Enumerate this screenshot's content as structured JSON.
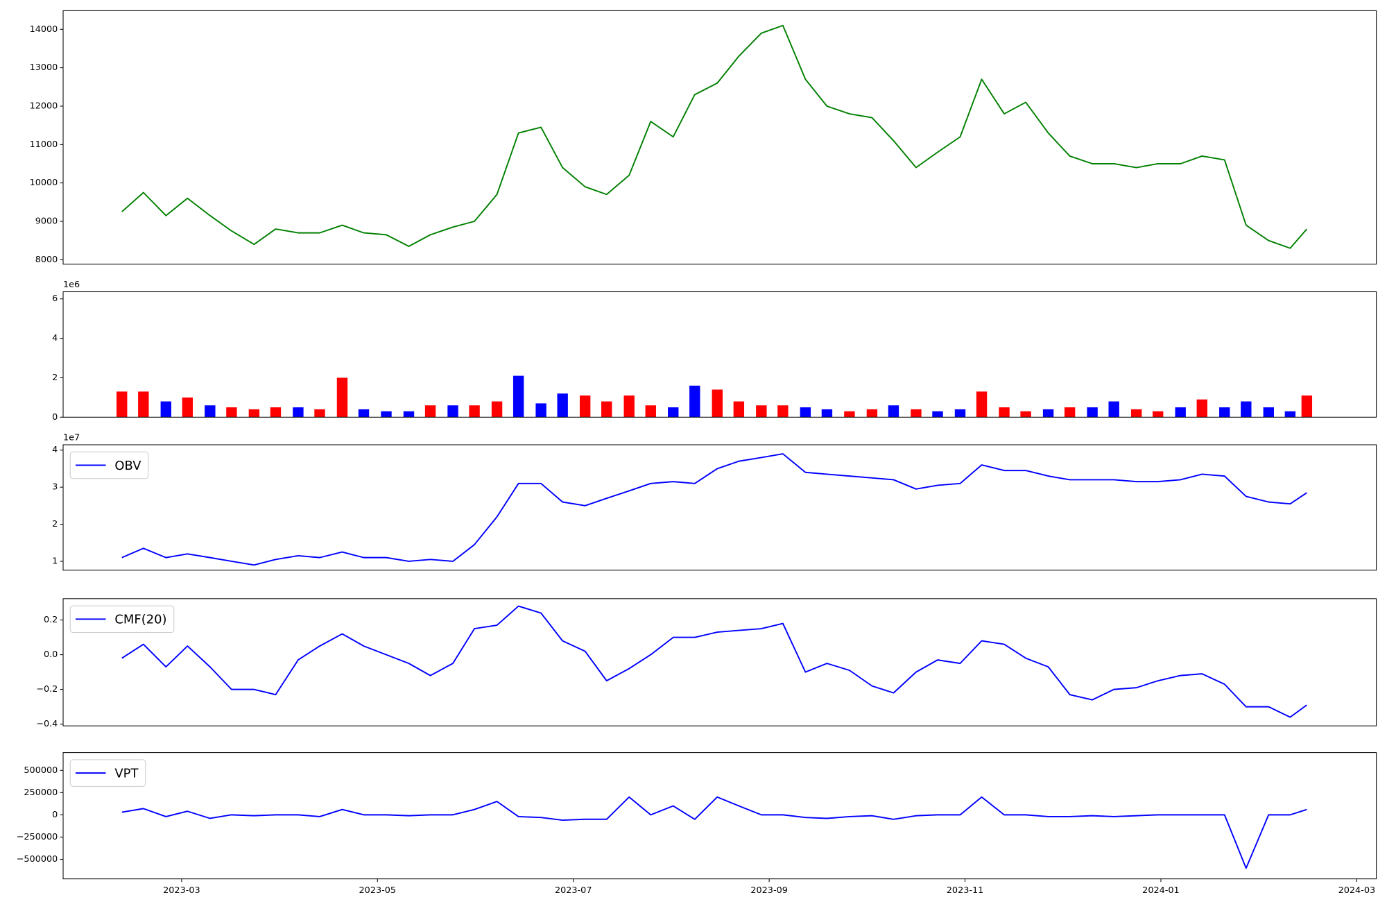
{
  "chart_data": [
    {
      "type": "line",
      "color": "#008000",
      "x": [
        2.39,
        2.61,
        2.84,
        3.06,
        3.29,
        3.51,
        3.74,
        3.96,
        4.19,
        4.41,
        4.64,
        4.86,
        5.09,
        5.32,
        5.54,
        5.77,
        5.99,
        6.22,
        6.44,
        6.67,
        6.89,
        7.12,
        7.34,
        7.57,
        7.79,
        8.02,
        8.24,
        8.47,
        8.69,
        8.92,
        9.14,
        9.37,
        9.59,
        9.82,
        10.05,
        10.27,
        10.5,
        10.72,
        10.95,
        11.17,
        11.4,
        11.62,
        11.85,
        12.07,
        12.3,
        12.52,
        12.75,
        12.97,
        13.2,
        13.42,
        13.65,
        13.87,
        14.1,
        14.32,
        14.49
      ],
      "values": [
        9250,
        9750,
        9150,
        9600,
        9150,
        8750,
        8400,
        8800,
        8700,
        8700,
        8900,
        8700,
        8650,
        8350,
        8650,
        8850,
        9000,
        9700,
        11300,
        11450,
        10400,
        9900,
        9700,
        10200,
        11600,
        11200,
        12300,
        12600,
        13300,
        13900,
        14100,
        12700,
        12000,
        11800,
        11700,
        11100,
        10400,
        10800,
        11200,
        12700,
        11800,
        12100,
        11300,
        10700,
        10500,
        10500,
        10400,
        10500,
        10500,
        10700,
        10600,
        8900,
        8500,
        8300,
        8800
      ],
      "xlim": [
        1.79,
        15.2
      ],
      "ylim": [
        7884,
        14486
      ],
      "yticks": [
        8000,
        9000,
        10000,
        11000,
        12000,
        13000,
        14000
      ]
    },
    {
      "type": "bar",
      "offset_label": "1e6",
      "x": [
        2.39,
        2.61,
        2.84,
        3.06,
        3.29,
        3.51,
        3.74,
        3.96,
        4.19,
        4.41,
        4.64,
        4.86,
        5.09,
        5.32,
        5.54,
        5.77,
        5.99,
        6.22,
        6.44,
        6.67,
        6.89,
        7.12,
        7.34,
        7.57,
        7.79,
        8.02,
        8.24,
        8.47,
        8.69,
        8.92,
        9.14,
        9.37,
        9.59,
        9.82,
        10.05,
        10.27,
        10.5,
        10.72,
        10.95,
        11.17,
        11.4,
        11.62,
        11.85,
        12.07,
        12.3,
        12.52,
        12.75,
        12.97,
        13.2,
        13.42,
        13.65,
        13.87,
        14.1,
        14.32,
        14.49
      ],
      "values": [
        1300000,
        1300000,
        800000,
        1000000,
        600000,
        500000,
        400000,
        500000,
        500000,
        400000,
        2000000,
        400000,
        300000,
        300000,
        600000,
        600000,
        600000,
        800000,
        2100000,
        700000,
        1200000,
        1100000,
        800000,
        1100000,
        600000,
        500000,
        1600000,
        1400000,
        800000,
        600000,
        600000,
        500000,
        400000,
        300000,
        400000,
        600000,
        400000,
        300000,
        400000,
        1300000,
        500000,
        300000,
        400000,
        500000,
        500000,
        800000,
        400000,
        300000,
        500000,
        900000,
        500000,
        800000,
        500000,
        300000,
        1100000
      ],
      "colors": [
        "red",
        "red",
        "blue",
        "red",
        "blue",
        "red",
        "red",
        "red",
        "blue",
        "red",
        "red",
        "blue",
        "blue",
        "blue",
        "red",
        "blue",
        "red",
        "red",
        "blue",
        "blue",
        "blue",
        "red",
        "red",
        "red",
        "red",
        "blue",
        "blue",
        "red",
        "red",
        "red",
        "red",
        "blue",
        "blue",
        "red",
        "red",
        "blue",
        "red",
        "blue",
        "blue",
        "red",
        "red",
        "red",
        "blue",
        "red",
        "blue",
        "blue",
        "red",
        "red",
        "blue",
        "red",
        "blue",
        "blue",
        "blue",
        "blue",
        "red"
      ],
      "xlim": [
        1.79,
        15.2
      ],
      "ylim": [
        0,
        6360000
      ],
      "yticks": [
        {
          "value": 0,
          "label": "0"
        },
        {
          "value": 2000000,
          "label": "2"
        },
        {
          "value": 4000000,
          "label": "4"
        },
        {
          "value": 6000000,
          "label": "6"
        }
      ]
    },
    {
      "type": "line",
      "offset_label": "1e7",
      "legend": "upper left",
      "x": [
        2.39,
        2.61,
        2.84,
        3.06,
        3.29,
        3.51,
        3.74,
        3.96,
        4.19,
        4.41,
        4.64,
        4.86,
        5.09,
        5.32,
        5.54,
        5.77,
        5.99,
        6.22,
        6.44,
        6.67,
        6.89,
        7.12,
        7.34,
        7.57,
        7.79,
        8.02,
        8.24,
        8.47,
        8.69,
        8.92,
        9.14,
        9.37,
        9.59,
        9.82,
        10.05,
        10.27,
        10.5,
        10.72,
        10.95,
        11.17,
        11.4,
        11.62,
        11.85,
        12.07,
        12.3,
        12.52,
        12.75,
        12.97,
        13.2,
        13.42,
        13.65,
        13.87,
        14.1,
        14.32,
        14.49
      ],
      "series": [
        {
          "name": "OBV",
          "color": "#0000ff",
          "values": [
            11000000,
            13500000,
            11000000,
            12000000,
            11000000,
            10000000,
            9000000,
            10500000,
            11500000,
            11000000,
            12500000,
            11000000,
            11000000,
            10000000,
            10500000,
            10000000,
            14500000,
            22000000,
            31000000,
            31000000,
            26000000,
            25000000,
            27000000,
            29000000,
            31000000,
            31500000,
            31000000,
            35000000,
            37000000,
            38000000,
            39000000,
            34000000,
            33500000,
            33000000,
            32500000,
            32000000,
            29500000,
            30500000,
            31000000,
            36000000,
            34500000,
            34500000,
            33000000,
            32000000,
            32000000,
            32000000,
            31500000,
            31500000,
            32000000,
            33500000,
            33000000,
            27500000,
            26000000,
            25500000,
            28500000
          ]
        }
      ],
      "xlim": [
        1.79,
        15.2
      ],
      "ylim": [
        7600000,
        41440000
      ],
      "yticks": [
        {
          "value": 10000000,
          "label": "1"
        },
        {
          "value": 20000000,
          "label": "2"
        },
        {
          "value": 30000000,
          "label": "3"
        },
        {
          "value": 40000000,
          "label": "4"
        }
      ]
    },
    {
      "type": "line",
      "legend": "upper left",
      "x": [
        2.39,
        2.61,
        2.84,
        3.06,
        3.29,
        3.51,
        3.74,
        3.96,
        4.19,
        4.41,
        4.64,
        4.86,
        5.09,
        5.32,
        5.54,
        5.77,
        5.99,
        6.22,
        6.44,
        6.67,
        6.89,
        7.12,
        7.34,
        7.57,
        7.79,
        8.02,
        8.24,
        8.47,
        8.69,
        8.92,
        9.14,
        9.37,
        9.59,
        9.82,
        10.05,
        10.27,
        10.5,
        10.72,
        10.95,
        11.17,
        11.4,
        11.62,
        11.85,
        12.07,
        12.3,
        12.52,
        12.75,
        12.97,
        13.2,
        13.42,
        13.65,
        13.87,
        14.1,
        14.32,
        14.49
      ],
      "series": [
        {
          "name": "CMF(20)",
          "color": "#0000ff",
          "values": [
            -0.02,
            0.06,
            -0.07,
            0.05,
            -0.07,
            -0.2,
            -0.2,
            -0.23,
            -0.03,
            0.05,
            0.12,
            0.05,
            0.0,
            -0.05,
            -0.12,
            -0.05,
            0.15,
            0.17,
            0.28,
            0.24,
            0.08,
            0.02,
            -0.15,
            -0.08,
            0.0,
            0.1,
            0.1,
            0.13,
            0.14,
            0.15,
            0.18,
            -0.1,
            -0.05,
            -0.09,
            -0.18,
            -0.22,
            -0.1,
            -0.03,
            -0.05,
            0.08,
            0.06,
            -0.02,
            -0.07,
            -0.23,
            -0.26,
            -0.2,
            -0.19,
            -0.15,
            -0.12,
            -0.11,
            -0.17,
            -0.3,
            -0.3,
            -0.36,
            -0.29
          ]
        }
      ],
      "xlim": [
        1.79,
        15.2
      ],
      "ylim": [
        -0.41,
        0.323
      ],
      "yticks": [
        {
          "value": -0.4,
          "label": "−0.4"
        },
        {
          "value": -0.2,
          "label": "−0.2"
        },
        {
          "value": 0,
          "label": "0.0"
        },
        {
          "value": 0.2,
          "label": "0.2"
        }
      ]
    },
    {
      "type": "line",
      "legend": "upper left",
      "x": [
        2.39,
        2.61,
        2.84,
        3.06,
        3.29,
        3.51,
        3.74,
        3.96,
        4.19,
        4.41,
        4.64,
        4.86,
        5.09,
        5.32,
        5.54,
        5.77,
        5.99,
        6.22,
        6.44,
        6.67,
        6.89,
        7.12,
        7.34,
        7.57,
        7.79,
        8.02,
        8.24,
        8.47,
        8.69,
        8.92,
        9.14,
        9.37,
        9.59,
        9.82,
        10.05,
        10.27,
        10.5,
        10.72,
        10.95,
        11.17,
        11.4,
        11.62,
        11.85,
        12.07,
        12.3,
        12.52,
        12.75,
        12.97,
        13.2,
        13.42,
        13.65,
        13.87,
        14.1,
        14.32,
        14.49
      ],
      "series": [
        {
          "name": "VPT",
          "color": "#0000ff",
          "values": [
            30000,
            70000,
            -20000,
            40000,
            -40000,
            0,
            -10000,
            0,
            0,
            -20000,
            60000,
            0,
            0,
            -10000,
            0,
            0,
            60000,
            150000,
            -20000,
            -30000,
            -60000,
            -50000,
            -50000,
            200000,
            0,
            100000,
            -50000,
            200000,
            100000,
            0,
            0,
            -30000,
            -40000,
            -20000,
            -10000,
            -50000,
            -10000,
            0,
            0,
            200000,
            0,
            0,
            -20000,
            -20000,
            -10000,
            -20000,
            -10000,
            0,
            0,
            0,
            0,
            -600000,
            0,
            0,
            60000
          ]
        }
      ],
      "xlim": [
        1.79,
        15.2
      ],
      "ylim": [
        -720000,
        700000
      ],
      "yticks": [
        {
          "value": -500000,
          "label": "−500000"
        },
        {
          "value": -250000,
          "label": "−250000"
        },
        0,
        250000,
        500000
      ],
      "xticks": [
        {
          "value": 3,
          "label": "2023-03"
        },
        {
          "value": 5,
          "label": "2023-05"
        },
        {
          "value": 7,
          "label": "2023-07"
        },
        {
          "value": 9,
          "label": "2023-09"
        },
        {
          "value": 11,
          "label": "2023-11"
        },
        {
          "value": 13,
          "label": "2024-01"
        },
        {
          "value": 15,
          "label": "2024-03"
        }
      ]
    }
  ]
}
